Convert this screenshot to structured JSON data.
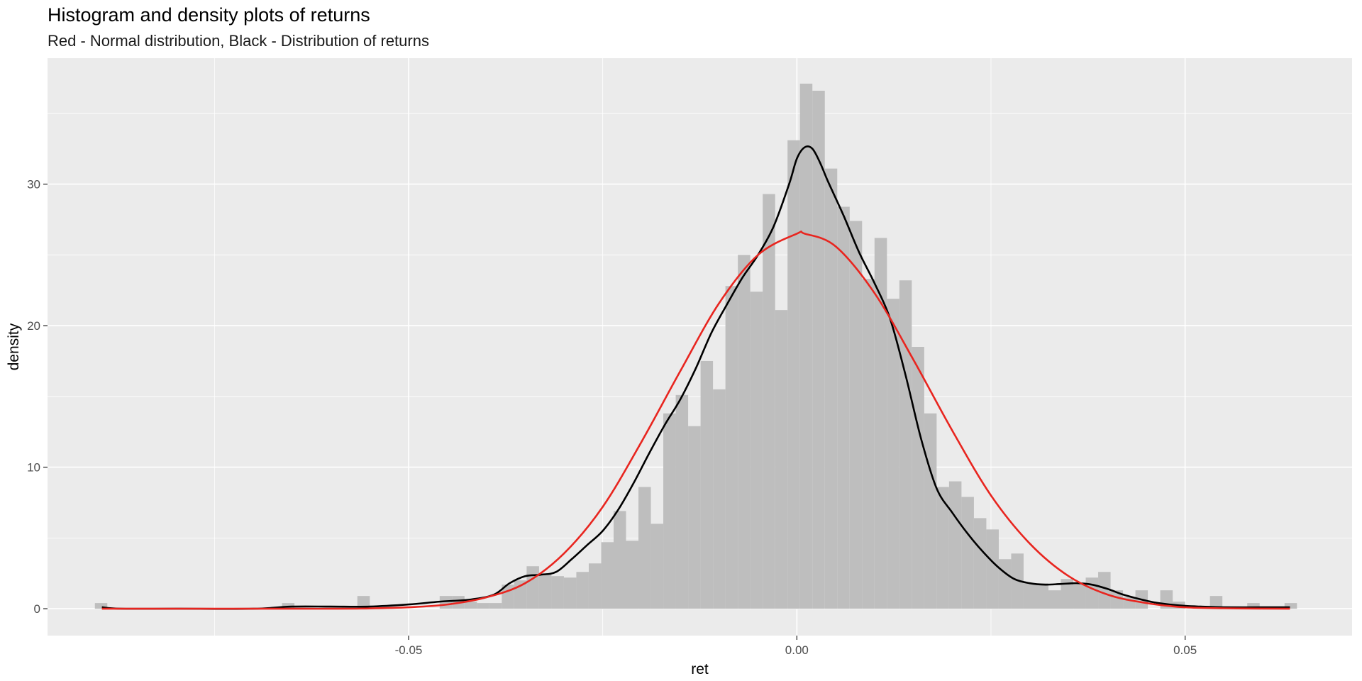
{
  "chart_data": {
    "type": "bar",
    "title": "Histogram and density plots of returns",
    "subtitle": "Red - Normal distribution, Black - Distribution of returns",
    "xlabel": "ret",
    "ylabel": "density",
    "xlim": [
      -0.0965,
      0.0715
    ],
    "ylim": [
      -1.9,
      38.9
    ],
    "x_ticks": [
      -0.05,
      0.0,
      0.05
    ],
    "x_tick_labels": [
      "-0.05",
      "0.00",
      "0.05"
    ],
    "y_ticks": [
      0,
      10,
      20,
      30
    ],
    "y_tick_labels": [
      "0",
      "10",
      "20",
      "30"
    ],
    "grid": true,
    "colors": {
      "panel": "#ebebeb",
      "grid": "#ffffff",
      "bars": "#bebebe",
      "normal_curve": "#e8251f",
      "density_curve": "#000000",
      "tick_text": "#4d4d4d"
    },
    "histogram": {
      "bin_width": 0.0016,
      "bins": [
        [
          -0.0896,
          0.4
        ],
        [
          -0.0655,
          0.4
        ],
        [
          -0.0558,
          0.9
        ],
        [
          -0.0452,
          0.9
        ],
        [
          -0.0436,
          0.9
        ],
        [
          -0.042,
          0.5
        ],
        [
          -0.0404,
          0.4
        ],
        [
          -0.0388,
          0.4
        ],
        [
          -0.0372,
          1.7
        ],
        [
          -0.0356,
          2.0
        ],
        [
          -0.034,
          3.0
        ],
        [
          -0.0324,
          2.5
        ],
        [
          -0.0308,
          2.3
        ],
        [
          -0.0292,
          2.2
        ],
        [
          -0.0276,
          2.6
        ],
        [
          -0.026,
          3.2
        ],
        [
          -0.0244,
          4.7
        ],
        [
          -0.0228,
          6.9
        ],
        [
          -0.0212,
          4.8
        ],
        [
          -0.0196,
          8.6
        ],
        [
          -0.018,
          6.0
        ],
        [
          -0.0164,
          13.8
        ],
        [
          -0.0148,
          15.1
        ],
        [
          -0.0132,
          12.9
        ],
        [
          -0.0116,
          17.5
        ],
        [
          -0.01,
          15.5
        ],
        [
          -0.0084,
          22.8
        ],
        [
          -0.0068,
          25.0
        ],
        [
          -0.0052,
          22.4
        ],
        [
          -0.0036,
          29.3
        ],
        [
          -0.002,
          21.1
        ],
        [
          -0.0004,
          33.1
        ],
        [
          0.0012,
          37.1
        ],
        [
          0.0028,
          36.6
        ],
        [
          0.0044,
          31.1
        ],
        [
          0.006,
          28.4
        ],
        [
          0.0076,
          27.4
        ],
        [
          0.0092,
          23.3
        ],
        [
          0.0108,
          26.2
        ],
        [
          0.0124,
          21.9
        ],
        [
          0.014,
          23.2
        ],
        [
          0.0156,
          18.5
        ],
        [
          0.0172,
          13.8
        ],
        [
          0.0188,
          8.6
        ],
        [
          0.0204,
          9.0
        ],
        [
          0.022,
          7.9
        ],
        [
          0.0236,
          6.4
        ],
        [
          0.0252,
          5.6
        ],
        [
          0.0268,
          3.5
        ],
        [
          0.0284,
          3.9
        ],
        [
          0.03,
          1.8
        ],
        [
          0.0316,
          1.8
        ],
        [
          0.0332,
          1.3
        ],
        [
          0.0348,
          2.1
        ],
        [
          0.0364,
          1.7
        ],
        [
          0.038,
          2.2
        ],
        [
          0.0396,
          2.6
        ],
        [
          0.0412,
          1.3
        ],
        [
          0.0428,
          0.8
        ],
        [
          0.0444,
          1.3
        ],
        [
          0.0476,
          1.3
        ],
        [
          0.0492,
          0.5
        ],
        [
          0.054,
          0.9
        ],
        [
          0.0588,
          0.4
        ],
        [
          0.0636,
          0.4
        ]
      ]
    },
    "series": [
      {
        "x": [
          -0.0895,
          -0.087,
          -0.08,
          -0.07,
          -0.065,
          -0.06,
          -0.055,
          -0.05,
          -0.046,
          -0.042,
          -0.039,
          -0.037,
          -0.035,
          -0.033,
          -0.031,
          -0.029,
          -0.027,
          -0.025,
          -0.023,
          -0.021,
          -0.019,
          -0.017,
          -0.015,
          -0.013,
          -0.011,
          -0.009,
          -0.007,
          -0.005,
          -0.003,
          -0.001,
          0.0,
          0.001,
          0.002,
          0.003,
          0.004,
          0.006,
          0.008,
          0.01,
          0.012,
          0.014,
          0.016,
          0.018,
          0.02,
          0.022,
          0.024,
          0.026,
          0.028,
          0.03,
          0.032,
          0.034,
          0.036,
          0.038,
          0.04,
          0.042,
          0.044,
          0.046,
          0.048,
          0.05,
          0.052,
          0.055,
          0.06,
          0.0635
        ],
        "y": [
          0.1,
          0.0,
          0.0,
          0.0,
          0.15,
          0.15,
          0.15,
          0.3,
          0.5,
          0.65,
          1.0,
          1.8,
          2.3,
          2.4,
          2.6,
          3.5,
          4.5,
          5.5,
          7.0,
          8.9,
          11.0,
          13.0,
          14.8,
          17.0,
          19.5,
          21.5,
          23.4,
          25.0,
          27.0,
          30.0,
          31.8,
          32.6,
          32.5,
          31.5,
          30.2,
          27.8,
          25.2,
          23.0,
          20.5,
          16.5,
          12.0,
          8.5,
          6.8,
          5.3,
          4.0,
          2.9,
          2.1,
          1.8,
          1.7,
          1.75,
          1.8,
          1.7,
          1.4,
          1.0,
          0.7,
          0.45,
          0.3,
          0.2,
          0.15,
          0.1,
          0.1,
          0.1
        ]
      },
      {
        "x": [
          -0.0895,
          -0.085,
          -0.08,
          -0.075,
          -0.07,
          -0.065,
          -0.06,
          -0.055,
          -0.05,
          -0.045,
          -0.04,
          -0.035,
          -0.03,
          -0.025,
          -0.02,
          -0.015,
          -0.01,
          -0.005,
          0.0,
          0.001,
          0.005,
          0.01,
          0.015,
          0.02,
          0.025,
          0.03,
          0.035,
          0.04,
          0.045,
          0.05,
          0.055,
          0.06,
          0.0635
        ],
        "y": [
          0.0,
          0.0,
          0.0,
          0.0,
          0.0,
          0.0,
          0.0,
          0.02,
          0.1,
          0.3,
          0.8,
          1.8,
          3.9,
          7.2,
          11.8,
          16.8,
          21.6,
          25.0,
          26.5,
          26.5,
          25.6,
          22.3,
          17.6,
          12.6,
          8.0,
          4.6,
          2.3,
          1.0,
          0.4,
          0.1,
          0.03,
          0.01,
          0.0
        ]
      }
    ]
  }
}
